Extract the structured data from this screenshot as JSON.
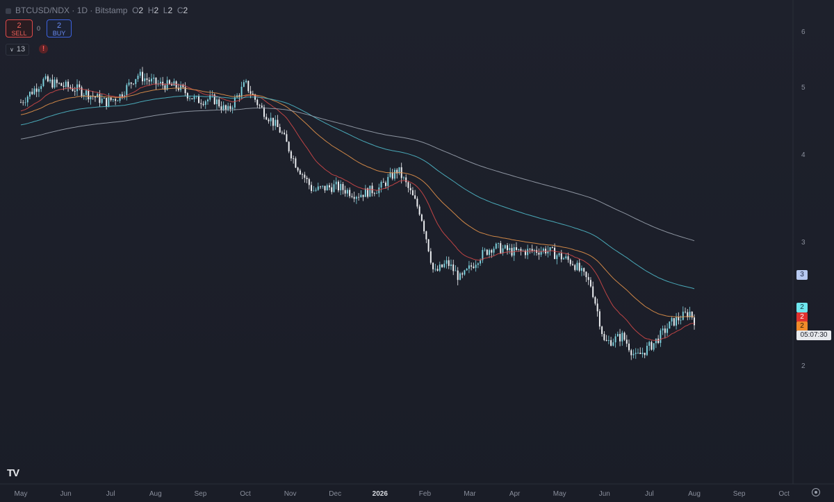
{
  "header": {
    "symbol": "BTCUSD/NDX",
    "sep1": " · ",
    "interval": "1D",
    "sep2": " · ",
    "exchange": "Bitstamp",
    "o_label": "O",
    "o_value": "2",
    "h_label": "H",
    "h_value": "2",
    "l_label": "L",
    "l_value": "2",
    "c_label": "C",
    "c_value": "2"
  },
  "trade": {
    "sell_price": "2",
    "sell_label": "SELL",
    "spread": "0",
    "buy_price": "2",
    "buy_label": "BUY"
  },
  "indicators": {
    "count_label": "13",
    "warning_glyph": "!"
  },
  "price_scale": {
    "labels": [
      "6",
      "5",
      "4",
      "3",
      "2"
    ],
    "badges": [
      {
        "text": "3",
        "bg": "#b7c9f0",
        "fg": "#1a2340"
      },
      {
        "text": "2",
        "bg": "#6ee6ee",
        "fg": "#10333a"
      },
      {
        "text": "2",
        "bg": "#e0322f",
        "fg": "#ffffff"
      },
      {
        "text": "2",
        "bg": "#f08a2a",
        "fg": "#2a1a08"
      }
    ],
    "countdown": "05:07:30"
  },
  "time_axis": {
    "labels": [
      "May",
      "Jun",
      "Jul",
      "Aug",
      "Sep",
      "Oct",
      "Nov",
      "Dec",
      "2026",
      "Feb",
      "Mar",
      "Apr",
      "May",
      "Jun",
      "Jul",
      "Aug",
      "Sep",
      "Oct"
    ]
  },
  "chart_data": {
    "type": "candlestick",
    "symbol": "BTCUSD/NDX",
    "interval": "1D",
    "x_range": [
      "May",
      "Oct"
    ],
    "y_scale": "log",
    "y_ticks": [
      2,
      3,
      4,
      5,
      6
    ],
    "anchors": [
      {
        "t": 0,
        "p": 4.75
      },
      {
        "t": 0.5,
        "p": 5.1
      },
      {
        "t": 1.3,
        "p": 4.95
      },
      {
        "t": 1.9,
        "p": 4.75
      },
      {
        "t": 2.2,
        "p": 4.85
      },
      {
        "t": 2.6,
        "p": 5.2
      },
      {
        "t": 3.0,
        "p": 5.05
      },
      {
        "t": 3.5,
        "p": 5.0
      },
      {
        "t": 3.9,
        "p": 4.78
      },
      {
        "t": 4.3,
        "p": 4.8
      },
      {
        "t": 4.6,
        "p": 4.6
      },
      {
        "t": 5.0,
        "p": 5.05
      },
      {
        "t": 5.3,
        "p": 4.7
      },
      {
        "t": 5.8,
        "p": 4.3
      },
      {
        "t": 6.1,
        "p": 3.9
      },
      {
        "t": 6.5,
        "p": 3.55
      },
      {
        "t": 7.0,
        "p": 3.6
      },
      {
        "t": 7.5,
        "p": 3.5
      },
      {
        "t": 8.0,
        "p": 3.58
      },
      {
        "t": 8.4,
        "p": 3.8
      },
      {
        "t": 8.9,
        "p": 3.3
      },
      {
        "t": 9.2,
        "p": 2.7
      },
      {
        "t": 9.5,
        "p": 2.8
      },
      {
        "t": 9.8,
        "p": 2.65
      },
      {
        "t": 10.2,
        "p": 2.85
      },
      {
        "t": 10.5,
        "p": 2.95
      },
      {
        "t": 11.0,
        "p": 2.9
      },
      {
        "t": 11.7,
        "p": 2.92
      },
      {
        "t": 12.3,
        "p": 2.8
      },
      {
        "t": 12.7,
        "p": 2.6
      },
      {
        "t": 13.0,
        "p": 2.15
      },
      {
        "t": 13.4,
        "p": 2.2
      },
      {
        "t": 13.7,
        "p": 2.05
      },
      {
        "t": 14.1,
        "p": 2.15
      },
      {
        "t": 14.5,
        "p": 2.3
      },
      {
        "t": 14.9,
        "p": 2.38
      },
      {
        "t": 15.0,
        "p": 2.32
      }
    ],
    "moving_averages": [
      {
        "color": "#d04848",
        "period": 20
      },
      {
        "color": "#e3924a",
        "period": 50
      },
      {
        "color": "#4fb8c8",
        "period": 100
      },
      {
        "color": "#9aa2ae",
        "period": 200
      }
    ]
  }
}
